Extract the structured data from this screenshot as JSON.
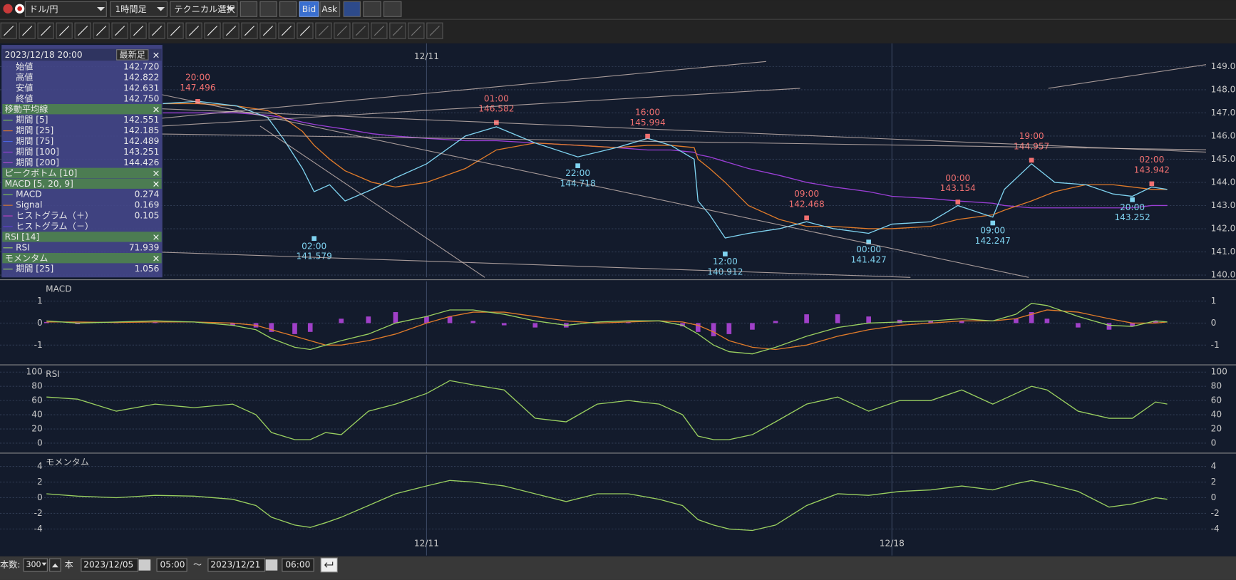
{
  "toolbar": {
    "pair": "ドル/円",
    "timeframe": "1時間足",
    "technical": "テクニカル選択",
    "bid": "Bid",
    "ask": "Ask"
  },
  "info_panel": {
    "date": "2023/12/18 20:00",
    "latest": "最新足",
    "ohlc": [
      {
        "label": "始値",
        "value": "142.720"
      },
      {
        "label": "高値",
        "value": "142.822"
      },
      {
        "label": "安値",
        "value": "142.631"
      },
      {
        "label": "終値",
        "value": "142.750"
      }
    ],
    "sections": [
      {
        "title": "移動平均線",
        "rows": [
          {
            "label": "期間 [5]",
            "value": "142.551",
            "color": "#7ec850"
          },
          {
            "label": "期間 [25]",
            "value": "142.185",
            "color": "#e07b2a"
          },
          {
            "label": "期間 [75]",
            "value": "142.489",
            "color": "#4a64e0"
          },
          {
            "label": "期間 [100]",
            "value": "143.251",
            "color": "#9b3fd6"
          },
          {
            "label": "期間 [200]",
            "value": "144.426",
            "color": "#b04ad0"
          }
        ]
      },
      {
        "title": "ピークボトム [10]",
        "rows": []
      },
      {
        "title": "MACD [5, 20, 9]",
        "rows": [
          {
            "label": "MACD",
            "value": "0.274",
            "color": "#7ec850"
          },
          {
            "label": "Signal",
            "value": "0.169",
            "color": "#e07b2a"
          },
          {
            "label": "ヒストグラム（＋）",
            "value": "0.105",
            "color": "#c040c0"
          },
          {
            "label": "ヒストグラム（－）",
            "color": "#6040d0"
          }
        ]
      },
      {
        "title": "RSI [14]",
        "rows": [
          {
            "label": "RSI",
            "value": "71.939",
            "color": "#9ad060"
          }
        ]
      },
      {
        "title": "モメンタム",
        "rows": [
          {
            "label": "期間 [25]",
            "value": "1.056",
            "color": "#9ad060"
          }
        ]
      }
    ]
  },
  "chart_data": [
    {
      "type": "line",
      "xlim": [
        0,
        311
      ],
      "ylim": [
        139.9,
        150
      ],
      "yticks": [
        {
          "value": 140,
          "label": "140.00"
        },
        {
          "value": 141,
          "label": "141.00"
        },
        {
          "value": 142,
          "label": "142.00"
        },
        {
          "value": 143,
          "label": "143.00"
        },
        {
          "value": 144,
          "label": "144.00"
        },
        {
          "value": 145,
          "label": "145.00"
        },
        {
          "value": 146,
          "label": "146.00"
        },
        {
          "value": 147,
          "label": "147.00"
        },
        {
          "value": 148,
          "label": "148.00"
        },
        {
          "value": 149,
          "label": "149.00"
        }
      ],
      "xticks": [
        {
          "value": 110,
          "label": "12/11"
        },
        {
          "value": 230,
          "label": "12/18"
        }
      ],
      "grid": true,
      "x": [
        42,
        51,
        61,
        69,
        73,
        78,
        81,
        85,
        89,
        96,
        102,
        110,
        120,
        128,
        138,
        149,
        159,
        167,
        173,
        179,
        180,
        183,
        187,
        193,
        201,
        208,
        215,
        224,
        230,
        240,
        247,
        256,
        259,
        266,
        272,
        280,
        287,
        292,
        297,
        301
      ],
      "series": [
        {
          "color": "#9b3fd6",
          "values": [
            147.0,
            147.0,
            147.0,
            146.9,
            146.8,
            146.6,
            146.5,
            146.4,
            146.3,
            146.1,
            146.0,
            145.9,
            145.8,
            145.8,
            145.7,
            145.6,
            145.5,
            145.4,
            145.4,
            145.3,
            145.2,
            145.1,
            144.9,
            144.6,
            144.3,
            144.0,
            143.8,
            143.6,
            143.4,
            143.3,
            143.2,
            143.1,
            143.0,
            142.9,
            142.9,
            142.9,
            142.9,
            142.9,
            143.0,
            143.0
          ]
        },
        {
          "color": "#e07b2a",
          "values": [
            147.4,
            147.4,
            147.3,
            147.1,
            146.8,
            146.2,
            145.6,
            145.0,
            144.5,
            144.0,
            143.8,
            144.0,
            144.6,
            145.4,
            145.7,
            145.6,
            145.5,
            145.6,
            145.6,
            145.5,
            145.0,
            144.6,
            144.0,
            143.0,
            142.4,
            142.1,
            142.1,
            142.0,
            142.0,
            142.1,
            142.4,
            142.6,
            142.8,
            143.2,
            143.6,
            143.9,
            143.9,
            143.8,
            143.7,
            143.7
          ]
        },
        {
          "color": "#7fd3f0",
          "values": [
            147.4,
            147.5,
            147.3,
            146.8,
            145.9,
            144.6,
            143.6,
            143.9,
            143.2,
            143.7,
            144.2,
            144.8,
            146.0,
            146.4,
            145.7,
            145.1,
            145.5,
            145.9,
            145.6,
            145.0,
            143.2,
            142.6,
            141.6,
            141.8,
            142.0,
            142.3,
            142.0,
            141.8,
            142.2,
            142.3,
            143.0,
            142.5,
            143.7,
            144.8,
            144.0,
            143.9,
            143.5,
            143.4,
            143.8,
            143.7
          ]
        }
      ],
      "annotations": [
        {
          "label": "20:00",
          "x": 51,
          "y": 147.496,
          "color": "#f07070"
        },
        {
          "label": "02:00",
          "x": 81,
          "y": 141.579,
          "color": "#7fd3f0"
        },
        {
          "label": "01:00",
          "x": 128,
          "y": 146.582,
          "color": "#f07070"
        },
        {
          "label": "22:00",
          "x": 149,
          "y": 144.718,
          "color": "#7fd3f0"
        },
        {
          "label": "16:00",
          "x": 167,
          "y": 145.994,
          "color": "#f07070"
        },
        {
          "label": "12:00",
          "x": 187,
          "y": 140.912,
          "color": "#7fd3f0"
        },
        {
          "label": "09:00",
          "x": 208,
          "y": 142.468,
          "color": "#f07070"
        },
        {
          "label": "00:00",
          "x": 224,
          "y": 141.427,
          "color": "#7fd3f0"
        },
        {
          "label": "00:00",
          "x": 247,
          "y": 143.154,
          "color": "#f07070"
        },
        {
          "label": "09:00",
          "x": 256,
          "y": 142.247,
          "color": "#7fd3f0"
        },
        {
          "label": "19:00",
          "x": 266,
          "y": 144.957,
          "color": "#f07070"
        },
        {
          "label": "20:00",
          "x": 292,
          "y": 143.252,
          "color": "#7fd3f0"
        },
        {
          "label": "02:00",
          "x": 297,
          "y": 143.942,
          "color": "#f07070"
        }
      ]
    },
    {
      "type": "line",
      "title": "MACD",
      "xlim": [
        0,
        311
      ],
      "ylim": [
        -1.9,
        1.9
      ],
      "yticks": [
        -1,
        0,
        1
      ],
      "xticks": [
        {
          "value": 110,
          "label": "12/11"
        },
        {
          "value": 230,
          "label": "12/18"
        }
      ],
      "grid": true,
      "x": [
        12,
        20,
        30,
        40,
        50,
        60,
        66,
        70,
        76,
        80,
        84,
        88,
        95,
        102,
        110,
        116,
        122,
        130,
        138,
        146,
        154,
        162,
        170,
        176,
        180,
        184,
        188,
        194,
        200,
        208,
        216,
        224,
        232,
        240,
        248,
        256,
        262,
        266,
        270,
        278,
        286,
        292,
        298,
        301
      ],
      "series": [
        {
          "type": "bar",
          "color": "#a040c8",
          "values": [
            0.05,
            -0.05,
            0.02,
            0.05,
            0,
            -0.1,
            -0.2,
            -0.4,
            -0.5,
            -0.4,
            0,
            0.2,
            0.3,
            0.5,
            0.3,
            0.3,
            0.1,
            -0.1,
            -0.2,
            -0.2,
            0.05,
            0.05,
            0,
            -0.15,
            -0.4,
            -0.6,
            -0.5,
            -0.3,
            0.1,
            0.4,
            0.4,
            0.3,
            0.15,
            0.1,
            0.1,
            0,
            0.2,
            0.5,
            0.2,
            -0.2,
            -0.3,
            -0.15,
            0.1,
            0
          ]
        },
        {
          "color": "#e07b2a",
          "values": [
            0.05,
            0.05,
            0.03,
            0.05,
            0.05,
            0,
            -0.1,
            -0.3,
            -0.6,
            -0.8,
            -1.0,
            -1.0,
            -0.8,
            -0.5,
            0,
            0.3,
            0.5,
            0.5,
            0.3,
            0.1,
            0,
            0.05,
            0.1,
            0.05,
            -0.1,
            -0.4,
            -0.8,
            -1.1,
            -1.2,
            -1.0,
            -0.6,
            -0.3,
            -0.1,
            0,
            0.1,
            0.1,
            0.2,
            0.4,
            0.6,
            0.5,
            0.2,
            0,
            0,
            0.05
          ]
        },
        {
          "color": "#9ad060",
          "values": [
            0.1,
            0,
            0.05,
            0.1,
            0.05,
            -0.1,
            -0.3,
            -0.7,
            -1.1,
            -1.2,
            -1.0,
            -0.8,
            -0.5,
            0,
            0.3,
            0.6,
            0.6,
            0.4,
            0.1,
            -0.1,
            0.05,
            0.1,
            0.1,
            -0.1,
            -0.5,
            -1.0,
            -1.3,
            -1.4,
            -1.1,
            -0.6,
            -0.2,
            0,
            0.05,
            0.1,
            0.2,
            0.1,
            0.4,
            0.9,
            0.8,
            0.3,
            -0.1,
            -0.15,
            0.1,
            0.05
          ]
        }
      ]
    },
    {
      "type": "line",
      "title": "RSI",
      "xlim": [
        0,
        311
      ],
      "ylim": [
        -14,
        108
      ],
      "yticks": [
        0,
        20,
        40,
        60,
        80,
        100
      ],
      "xticks": [
        {
          "value": 110,
          "label": "12/11"
        },
        {
          "value": 230,
          "label": "12/18"
        }
      ],
      "grid": true,
      "x": [
        12,
        20,
        30,
        40,
        50,
        60,
        66,
        70,
        76,
        80,
        84,
        88,
        95,
        102,
        110,
        116,
        122,
        130,
        138,
        146,
        154,
        162,
        170,
        176,
        180,
        184,
        188,
        194,
        200,
        208,
        216,
        224,
        232,
        240,
        248,
        256,
        262,
        266,
        270,
        278,
        286,
        292,
        298,
        301
      ],
      "series": [
        {
          "color": "#9ad060",
          "values": [
            65,
            62,
            45,
            55,
            50,
            55,
            40,
            15,
            5,
            5,
            15,
            12,
            45,
            55,
            70,
            88,
            82,
            75,
            35,
            30,
            55,
            60,
            55,
            40,
            10,
            5,
            5,
            12,
            30,
            55,
            65,
            45,
            60,
            60,
            75,
            55,
            70,
            80,
            75,
            45,
            35,
            35,
            58,
            55
          ]
        }
      ]
    },
    {
      "type": "line",
      "title": "モメンタム",
      "xlim": [
        0,
        311
      ],
      "ylim": [
        -7.4,
        5.5
      ],
      "yticks": [
        -4,
        -2,
        0,
        2,
        4
      ],
      "xticks": [
        {
          "value": 110,
          "label": "12/11"
        },
        {
          "value": 230,
          "label": "12/18"
        }
      ],
      "grid": true,
      "x": [
        12,
        20,
        30,
        40,
        50,
        60,
        66,
        70,
        76,
        80,
        84,
        88,
        95,
        102,
        110,
        116,
        122,
        130,
        138,
        146,
        154,
        162,
        170,
        176,
        180,
        184,
        188,
        194,
        200,
        208,
        216,
        224,
        232,
        240,
        248,
        256,
        262,
        266,
        270,
        278,
        286,
        292,
        298,
        301
      ],
      "series": [
        {
          "color": "#9ad060",
          "values": [
            0.5,
            0.2,
            0,
            0.3,
            0.2,
            -0.2,
            -1,
            -2.5,
            -3.5,
            -3.8,
            -3.2,
            -2.5,
            -1,
            0.5,
            1.5,
            2.2,
            2,
            1.5,
            0.5,
            -0.5,
            0.5,
            0.5,
            -0.2,
            -1,
            -2.8,
            -3.5,
            -4,
            -4.2,
            -3.5,
            -1,
            0.5,
            0.3,
            0.8,
            1,
            1.5,
            1,
            1.8,
            2.2,
            1.8,
            0.8,
            -1.2,
            -0.8,
            0,
            -0.2
          ]
        }
      ]
    }
  ],
  "footer": {
    "count_label": "本数:",
    "count": "300",
    "unit": "本",
    "from_date": "2023/12/05",
    "from_time": "05:00",
    "tilde": "～",
    "to_date": "2023/12/21",
    "to_time": "06:00"
  }
}
